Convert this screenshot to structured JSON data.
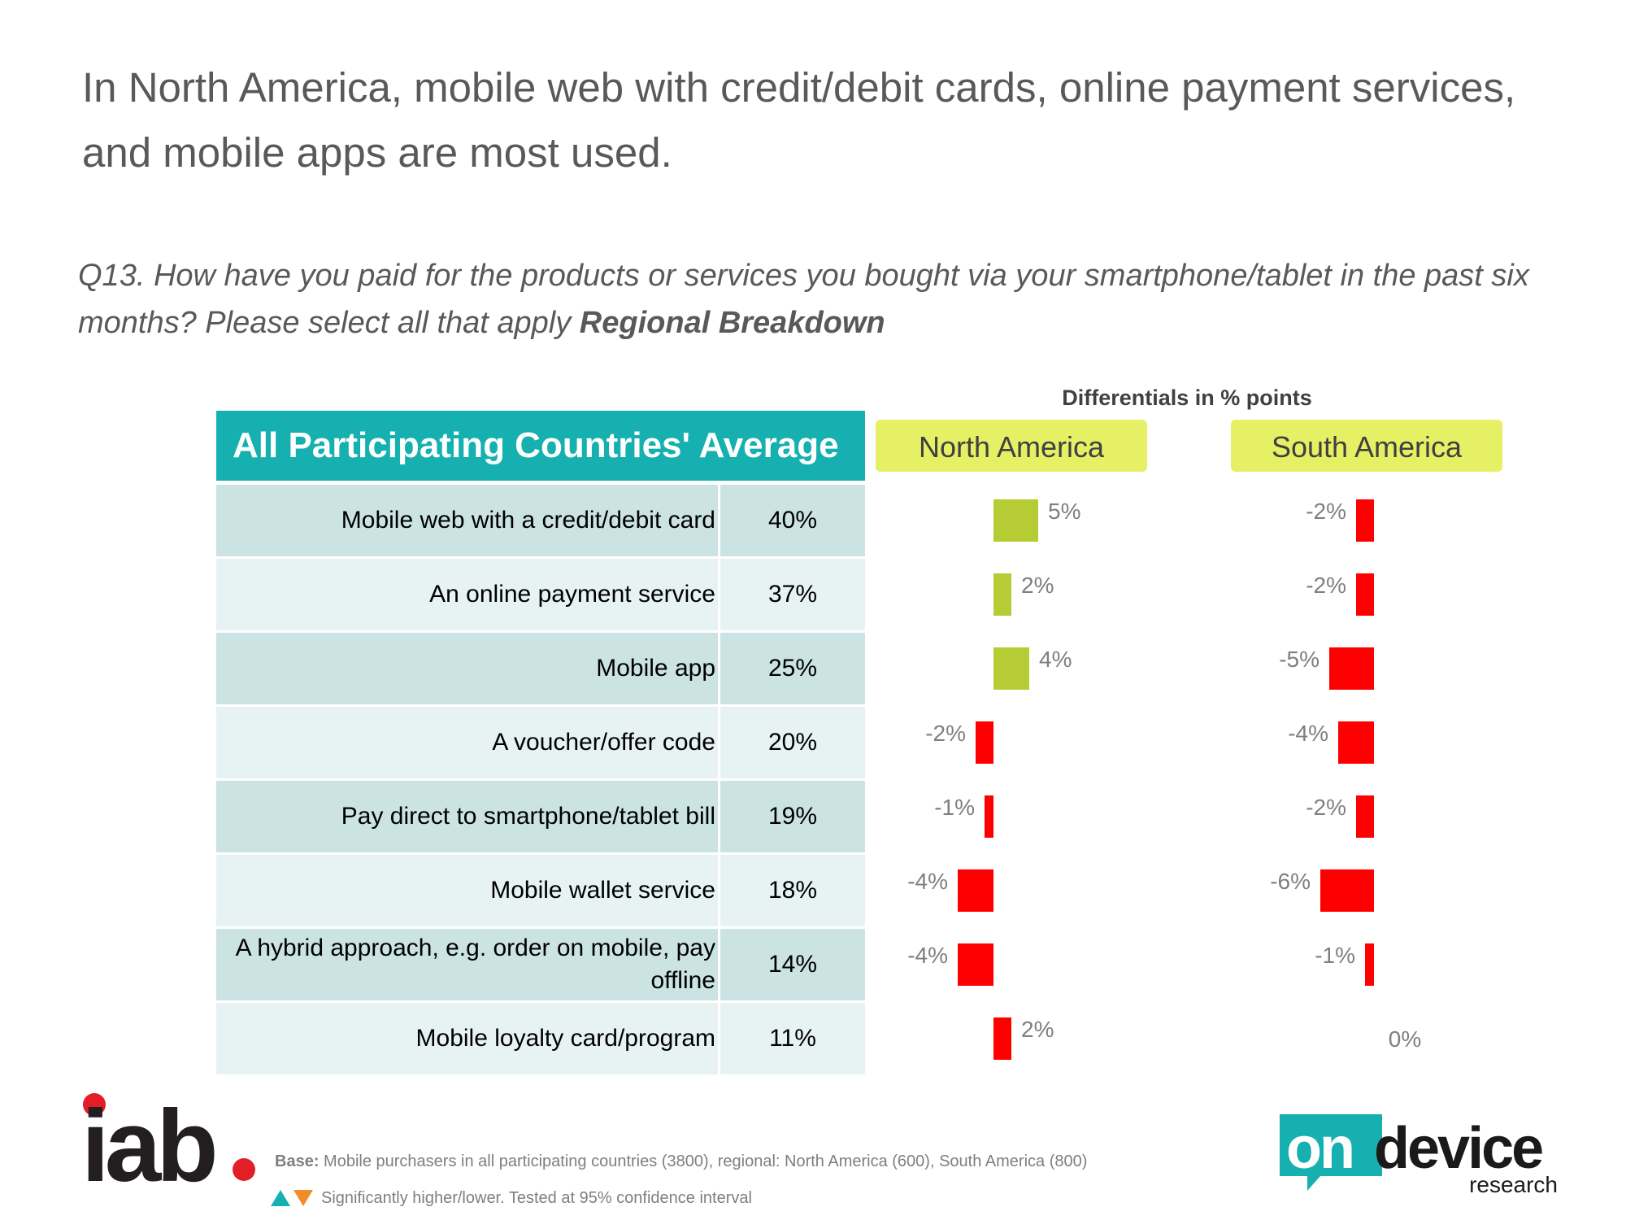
{
  "headline": "In North America, mobile web with credit/debit cards, online payment services, and mobile apps are most used.",
  "question": {
    "text": "Q13. How have you paid for the products or services you bought via your smartphone/tablet in the past six months? Please select all that apply ",
    "emphasis": "Regional Breakdown"
  },
  "differentials_title": "Differentials in % points",
  "table_header": "All Participating Countries' Average",
  "region_headers": [
    "North America",
    "South America"
  ],
  "rows": [
    {
      "label": "Mobile web with a credit/debit card",
      "value": "40%"
    },
    {
      "label": "An online payment service",
      "value": "37%"
    },
    {
      "label": "Mobile app",
      "value": "25%"
    },
    {
      "label": "A voucher/offer code",
      "value": "20%"
    },
    {
      "label": "Pay direct to smartphone/tablet bill",
      "value": "19%"
    },
    {
      "label": "Mobile wallet service",
      "value": "18%"
    },
    {
      "label": "A hybrid approach, e.g. order on mobile, pay offline",
      "value": "14%"
    },
    {
      "label": "Mobile loyalty card/program",
      "value": "11%"
    }
  ],
  "chart_data": {
    "type": "bar",
    "orientation": "horizontal",
    "categories": [
      "Mobile web with a credit/debit card",
      "An online payment service",
      "Mobile app",
      "A voucher/offer code",
      "Pay direct to smartphone/tablet bill",
      "Mobile wallet service",
      "A hybrid approach, e.g. order on mobile, pay offline",
      "Mobile loyalty card/program"
    ],
    "average": [
      40,
      37,
      25,
      20,
      19,
      18,
      14,
      11
    ],
    "series": [
      {
        "name": "North America",
        "values": [
          5,
          2,
          4,
          -2,
          -1,
          -4,
          -4,
          2
        ],
        "labels": [
          "5%",
          "2%",
          "4%",
          "-2%",
          "-1%",
          "-4%",
          "-4%",
          "2%"
        ],
        "colors": [
          "#b5cc34",
          "#b5cc34",
          "#b5cc34",
          "#ff0000",
          "#ff0000",
          "#ff0000",
          "#ff0000",
          "#ff0000"
        ]
      },
      {
        "name": "South America",
        "values": [
          -2,
          -2,
          -5,
          -4,
          -2,
          -6,
          -1,
          0
        ],
        "labels": [
          "-2%",
          "-2%",
          "-5%",
          "-4%",
          "-2%",
          "-6%",
          "-1%",
          "0%"
        ],
        "colors": [
          "#ff0000",
          "#ff0000",
          "#ff0000",
          "#ff0000",
          "#ff0000",
          "#ff0000",
          "#ff0000",
          "#ff0000"
        ]
      }
    ],
    "unit": "% points",
    "grid": false
  },
  "footer": {
    "iab_logo_text": "iab",
    "base_label": "Base:",
    "base_text": " Mobile purchasers in all participating countries (3800), regional: North America (600), South America (800)",
    "significance_text": "Significantly higher/lower. Tested at 95% confidence interval",
    "ondevice_logo_on": "on",
    "ondevice_logo_device": "device",
    "ondevice_logo_research": "research"
  },
  "colors": {
    "teal": "#17b0b0",
    "row_dark": "#cbe3e3",
    "row_light": "#e7f3f3",
    "region_yellow": "#e6f064",
    "positive_green": "#b5cc34",
    "negative_red": "#ff0000",
    "sig_higher": "#17b0b0",
    "sig_lower": "#f28c28"
  }
}
